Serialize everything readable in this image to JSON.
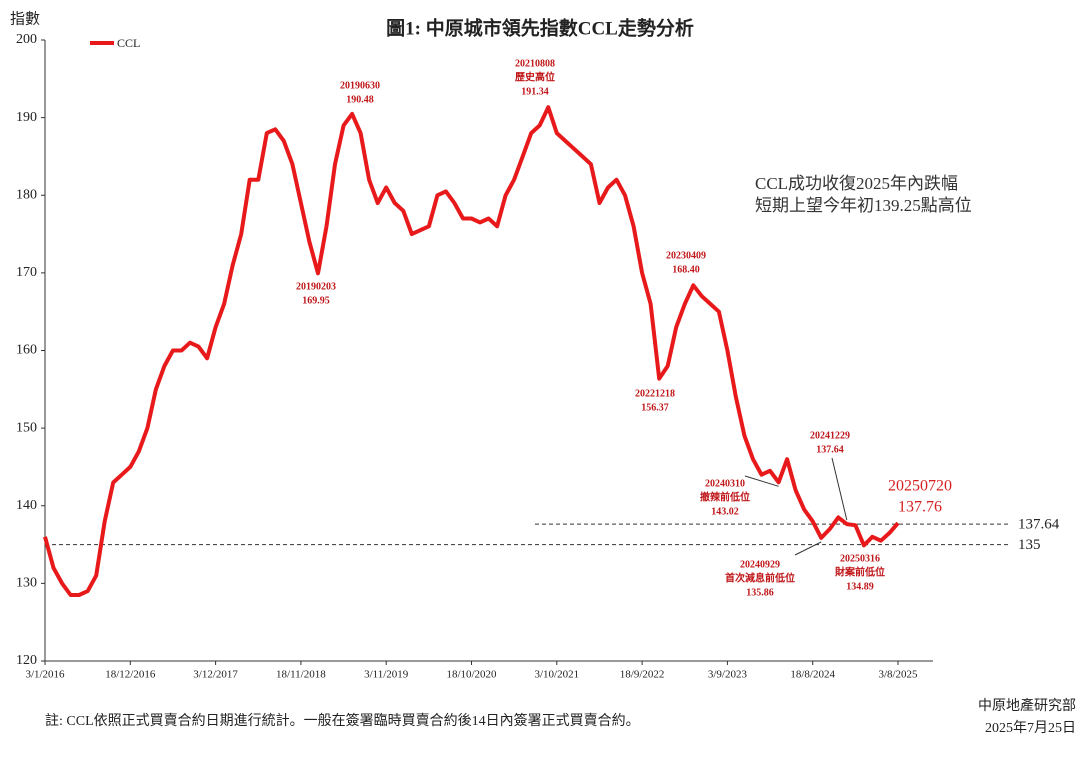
{
  "chart_data": {
    "type": "line",
    "title": "圖1: 中原城市領先指數CCL走勢分析",
    "y_label": "指數",
    "categories": [
      "3/1/2016",
      null,
      null,
      null,
      null,
      null,
      null,
      null,
      null,
      null,
      "18/12/2016",
      null,
      null,
      null,
      null,
      null,
      null,
      null,
      null,
      null,
      "3/12/2017",
      null,
      null,
      null,
      null,
      null,
      null,
      null,
      null,
      null,
      "18/11/2018",
      null,
      null,
      null,
      null,
      null,
      null,
      null,
      null,
      null,
      "3/11/2019",
      null,
      null,
      null,
      null,
      null,
      null,
      null,
      null,
      null,
      "18/10/2020",
      null,
      null,
      null,
      null,
      null,
      null,
      null,
      null,
      null,
      "3/10/2021",
      null,
      null,
      null,
      null,
      null,
      null,
      null,
      null,
      null,
      "18/9/2022",
      null,
      null,
      null,
      null,
      null,
      null,
      null,
      null,
      null,
      "3/9/2023",
      null,
      null,
      null,
      null,
      null,
      null,
      null,
      null,
      null,
      "18/8/2024",
      null,
      null,
      null,
      null,
      null,
      null,
      null,
      null,
      null,
      "3/8/2025"
    ],
    "series": [
      {
        "name": "CCL",
        "color": "#e8191a",
        "values": [
          136,
          132,
          130,
          128.5,
          128.5,
          129,
          131,
          138,
          143,
          144,
          145,
          147,
          150,
          155,
          158,
          160,
          160,
          161,
          160.5,
          159,
          163,
          166,
          171,
          175,
          182,
          182,
          188,
          188.5,
          187,
          184,
          179,
          174,
          169.95,
          176,
          184,
          189,
          190.48,
          188,
          182,
          179,
          181,
          179,
          178,
          175,
          175.5,
          176,
          180,
          180.5,
          179,
          177,
          177,
          176.5,
          177,
          176,
          180,
          182,
          185,
          188,
          189,
          191.34,
          188,
          187,
          186,
          185,
          184,
          179,
          181,
          182,
          180,
          176,
          170,
          166,
          156.37,
          158,
          163,
          166,
          168.4,
          167,
          166,
          165,
          160,
          154,
          149,
          146,
          144,
          144.5,
          143.02,
          146,
          142,
          139.5,
          138,
          135.86,
          137,
          138.5,
          137.64,
          137.5,
          134.89,
          136,
          135.5,
          136.5,
          137.76
        ]
      }
    ],
    "ylim": [
      120,
      200
    ],
    "yticks": [
      120,
      130,
      140,
      150,
      160,
      170,
      180,
      190,
      200
    ],
    "hlines": [
      137.64,
      135
    ],
    "annotations": [
      {
        "date": "20190203",
        "value": 169.95
      },
      {
        "date": "20190630",
        "value": 190.48
      },
      {
        "date": "20210808",
        "note": "歷史高位",
        "value": 191.34
      },
      {
        "date": "20221218",
        "value": 156.37
      },
      {
        "date": "20230409",
        "value": 168.4,
        "value_label": "168.40"
      },
      {
        "date": "20240310",
        "note": "撤辣前低位",
        "value": 143.02
      },
      {
        "date": "20240929",
        "note": "首次減息前低位",
        "value": 135.86
      },
      {
        "date": "20241229",
        "value": 137.64
      },
      {
        "date": "20250316",
        "note": "財案前低位",
        "value": 134.89
      },
      {
        "date": "20250720",
        "value": 137.76
      }
    ],
    "callout": [
      "CCL成功收復2025年內跌幅",
      "短期上望今年初139.25點高位"
    ],
    "footnote": "註: CCL依照正式買賣合約日期進行統計。一般在簽署臨時買賣合約後14日內簽署正式買賣合約。",
    "source": "中原地產研究部",
    "date": "2025年7月25日"
  }
}
